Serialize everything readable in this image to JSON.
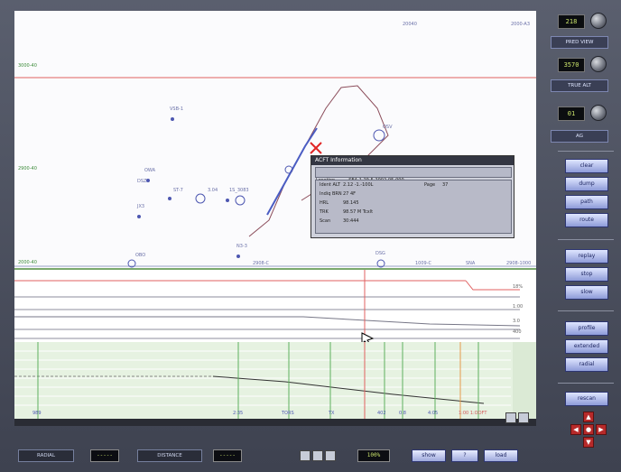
{
  "window": {
    "title": ""
  },
  "map": {
    "left_scale": [
      "3000-40",
      "2900-40",
      "2000-40"
    ],
    "waypoints": [
      "VSB-1",
      "OWA",
      "DSZ",
      "JX3",
      "ST-7",
      "3.04",
      "1S_3083",
      "N3-3",
      "OBO",
      "DSG",
      "OSV"
    ],
    "bottom_labels": [
      "2908-C",
      "1009-C",
      "SNA",
      "2908-1000"
    ],
    "top_right": [
      "20040",
      "2000-A3"
    ]
  },
  "popup": {
    "title": "ACFT Information",
    "line1_label": "Location",
    "line1_value": "SEA-1 29-5  2002-05-000",
    "rows": [
      {
        "k": "Ident ALT",
        "v": "2.12  -1.-100L",
        "k2": "Page",
        "v2": "37"
      },
      {
        "k": "Indiq BRN",
        "v": "27 4F"
      },
      {
        "k": "HRL",
        "v": "98.145"
      },
      {
        "k": "TRK",
        "v": "98.57 M Tcxlt"
      },
      {
        "k": "Scan",
        "v": "30:444"
      }
    ]
  },
  "profile": {
    "right_labels": [
      "18%",
      "1:00",
      "3.0",
      "400"
    ]
  },
  "strip": {
    "bottom_ticks": [
      "989",
      "2:35",
      "TORS",
      "TX",
      "402",
      "0.8",
      "4:05",
      "1:00 1:OOFT"
    ]
  },
  "sidebar": {
    "readout1": "218",
    "label1": "PRED VIEW",
    "readout2": "3570",
    "label2": "TRUE ALT",
    "readout3": "01",
    "label3": "AG",
    "group1": [
      "clear",
      "dump",
      "path",
      "route"
    ],
    "group2": [
      "replay",
      "stop",
      "slow"
    ],
    "group3": [
      "profile",
      "extended",
      "radial"
    ],
    "group4": [
      "rescan"
    ]
  },
  "footer": {
    "radial_label": "RADIAL",
    "radial_value": "-----",
    "distance_label": "DISTANCE",
    "distance_value": "-----",
    "zoom_value": "100%",
    "buttons": [
      "show",
      "?",
      "load"
    ]
  }
}
